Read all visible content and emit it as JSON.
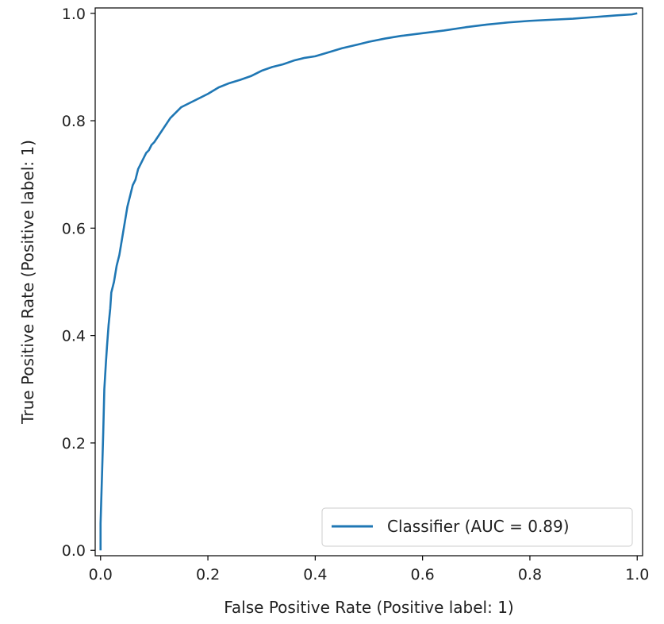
{
  "chart_data": {
    "type": "line",
    "title": "",
    "xlabel": "False Positive Rate (Positive label: 1)",
    "ylabel": "True Positive Rate (Positive label: 1)",
    "xlim": [
      -0.01,
      1.01
    ],
    "ylim": [
      -0.01,
      1.01
    ],
    "xticks": [
      0.0,
      0.2,
      0.4,
      0.6,
      0.8,
      1.0
    ],
    "yticks": [
      0.0,
      0.2,
      0.4,
      0.6,
      0.8,
      1.0
    ],
    "xtick_labels": [
      "0.0",
      "0.2",
      "0.4",
      "0.6",
      "0.8",
      "1.0"
    ],
    "ytick_labels": [
      "0.0",
      "0.2",
      "0.4",
      "0.6",
      "0.8",
      "1.0"
    ],
    "grid": false,
    "legend_position": "lower-right",
    "series": [
      {
        "name": "Classifier (AUC = 0.89)",
        "color": "#1f77b4",
        "x": [
          0.0,
          0.0,
          0.003,
          0.005,
          0.007,
          0.01,
          0.012,
          0.015,
          0.018,
          0.02,
          0.025,
          0.03,
          0.035,
          0.04,
          0.045,
          0.05,
          0.055,
          0.06,
          0.065,
          0.07,
          0.08,
          0.085,
          0.09,
          0.095,
          0.1,
          0.11,
          0.12,
          0.13,
          0.14,
          0.15,
          0.16,
          0.17,
          0.18,
          0.19,
          0.2,
          0.22,
          0.24,
          0.26,
          0.28,
          0.3,
          0.32,
          0.34,
          0.36,
          0.38,
          0.4,
          0.42,
          0.45,
          0.48,
          0.5,
          0.53,
          0.56,
          0.6,
          0.64,
          0.68,
          0.72,
          0.76,
          0.8,
          0.84,
          0.88,
          0.92,
          0.96,
          0.99,
          1.0
        ],
        "y": [
          0.0,
          0.05,
          0.15,
          0.22,
          0.3,
          0.35,
          0.38,
          0.42,
          0.45,
          0.48,
          0.5,
          0.53,
          0.55,
          0.58,
          0.61,
          0.64,
          0.66,
          0.68,
          0.69,
          0.71,
          0.73,
          0.74,
          0.745,
          0.755,
          0.76,
          0.775,
          0.79,
          0.805,
          0.815,
          0.825,
          0.83,
          0.835,
          0.84,
          0.845,
          0.85,
          0.862,
          0.87,
          0.876,
          0.883,
          0.893,
          0.9,
          0.905,
          0.912,
          0.917,
          0.92,
          0.926,
          0.935,
          0.942,
          0.947,
          0.953,
          0.958,
          0.963,
          0.968,
          0.974,
          0.979,
          0.983,
          0.986,
          0.988,
          0.99,
          0.993,
          0.996,
          0.998,
          1.0
        ]
      }
    ]
  }
}
